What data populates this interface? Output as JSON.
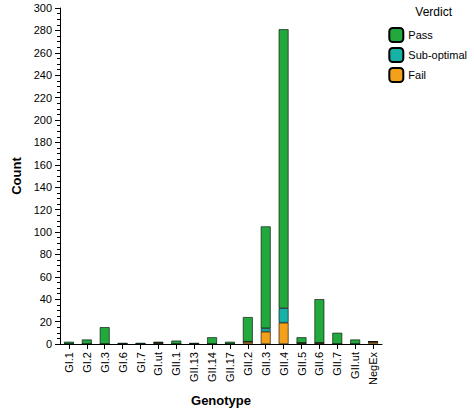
{
  "chart_data": {
    "type": "bar",
    "stacked": true,
    "x_label": "Genotype",
    "y_label": "Count",
    "legend_title": "Verdict",
    "legend": "upper right",
    "categories": [
      "GI.1",
      "GI.2",
      "GI.3",
      "GI.6",
      "GI.7",
      "GI.ut",
      "GII.1",
      "GII.13",
      "GII.14",
      "GII.17",
      "GII.2",
      "GII.3",
      "GII.4",
      "GII.5",
      "GII.6",
      "GII.7",
      "GII.ut",
      "NegEx"
    ],
    "series": [
      {
        "name": "Pass",
        "color": "#22a83c",
        "values": [
          2,
          4,
          15,
          1,
          1,
          1,
          3,
          1,
          6,
          2,
          22,
          91,
          249,
          5,
          39,
          10,
          4,
          0
        ]
      },
      {
        "name": "Sub-optimal",
        "color": "#17b2a6",
        "values": [
          0,
          0,
          0,
          0,
          0,
          0,
          0,
          0,
          0,
          0,
          0,
          3,
          13,
          0,
          0,
          0,
          0,
          0
        ]
      },
      {
        "name": "Fail",
        "color": "#f5a01a",
        "values": [
          0,
          0,
          0,
          0,
          0,
          1,
          0,
          0,
          0,
          0,
          2,
          11,
          19,
          1,
          1,
          0,
          0,
          2
        ]
      }
    ],
    "ylim": [
      0,
      300
    ],
    "yticks": [
      0,
      20,
      40,
      60,
      80,
      100,
      120,
      140,
      160,
      180,
      200,
      220,
      240,
      260,
      280,
      300
    ],
    "grid": false
  }
}
